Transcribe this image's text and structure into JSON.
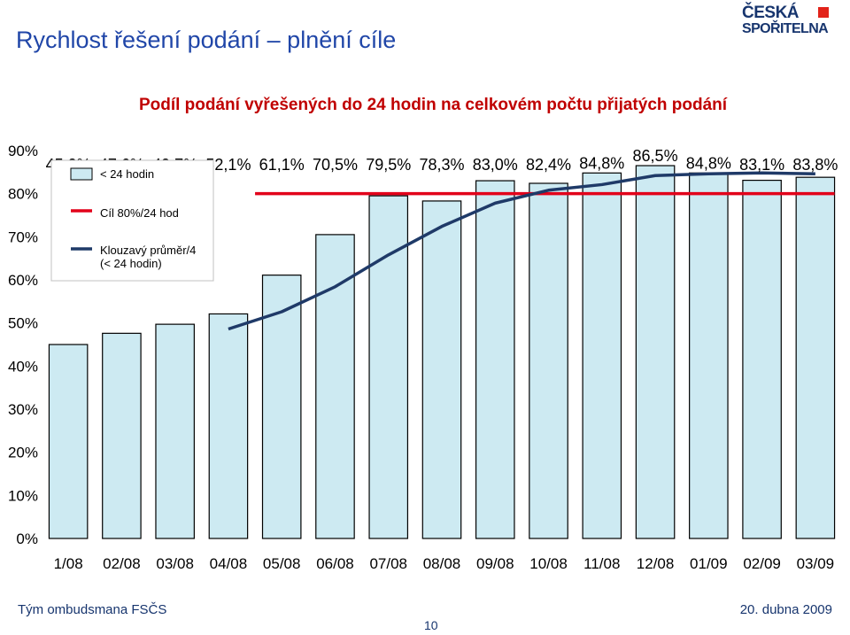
{
  "header": {
    "title": "Rychlost řešení podání – plnění cíle",
    "logo_line1": "ČESKÁ",
    "logo_line2": "SPOŘITELNA"
  },
  "footer": {
    "left": "Tým ombudsmana FSČS",
    "right": "20. dubna 2009",
    "page_number": "10"
  },
  "chart_data": {
    "type": "bar",
    "title": "Podíl podání vyřešených do 24 hodin na celkovém počtu přijatých podání",
    "categories": [
      "1/08",
      "02/08",
      "03/08",
      "04/08",
      "05/08",
      "06/08",
      "07/08",
      "08/08",
      "09/08",
      "10/08",
      "11/08",
      "12/08",
      "01/09",
      "02/09",
      "03/09"
    ],
    "y_ticks": [
      "0%",
      "10%",
      "20%",
      "30%",
      "40%",
      "50%",
      "60%",
      "70%",
      "80%",
      "90%"
    ],
    "ylim": [
      0,
      90
    ],
    "series": [
      {
        "name": "< 24 hodin",
        "kind": "bar",
        "values": [
          45.0,
          47.6,
          49.7,
          52.1,
          61.1,
          70.5,
          79.5,
          78.3,
          83.0,
          82.4,
          84.8,
          86.5,
          84.8,
          83.1,
          83.8
        ],
        "labels": [
          "45,0%",
          "47,6%",
          "49,7%",
          "52,1%",
          "61,1%",
          "70,5%",
          "79,5%",
          "78,3%",
          "83,0%",
          "82,4%",
          "84,8%",
          "86,5%",
          "84,8%",
          "83,1%",
          "83,8%"
        ],
        "color": "#cdeaf2",
        "stroke": "#000000"
      },
      {
        "name": "Cíl 80%/24 hod",
        "kind": "line",
        "values": [
          null,
          null,
          null,
          null,
          80,
          80,
          80,
          80,
          80,
          80,
          80,
          80,
          80,
          80,
          80
        ],
        "color": "#e2001a"
      },
      {
        "name": "Klouzavý průměr/4 (< 24 hodin)",
        "legend_lines": [
          "Klouzavý průměr/4",
          "(< 24 hodin)"
        ],
        "kind": "line",
        "values": [
          null,
          null,
          null,
          48.6,
          52.6,
          58.4,
          65.8,
          72.4,
          77.8,
          80.8,
          82.1,
          84.2,
          84.6,
          84.8,
          84.6
        ],
        "color": "#1f3a68"
      }
    ],
    "grid": false,
    "legend_position": "top-left"
  }
}
